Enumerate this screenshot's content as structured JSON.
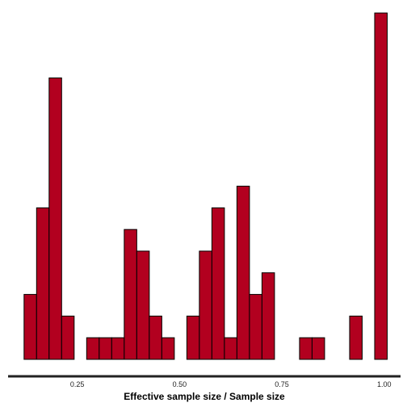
{
  "chart_data": {
    "type": "bar",
    "title": "",
    "xlabel": "Effective sample size / Sample size",
    "ylabel": "",
    "xlim": [
      0.077,
      1.04
    ],
    "ylim": [
      0,
      16.6
    ],
    "x_ticks": [
      {
        "value": 0.25,
        "label": "0.25"
      },
      {
        "value": 0.5,
        "label": "0.50"
      },
      {
        "value": 0.75,
        "label": "0.75"
      },
      {
        "value": 1.0,
        "label": "1.00"
      }
    ],
    "bin_width": 0.0306,
    "bins": [
      {
        "x_start": 0.12,
        "count": 3
      },
      {
        "x_start": 0.1506,
        "count": 7
      },
      {
        "x_start": 0.1812,
        "count": 13
      },
      {
        "x_start": 0.2118,
        "count": 2
      },
      {
        "x_start": 0.2424,
        "count": 0
      },
      {
        "x_start": 0.273,
        "count": 1
      },
      {
        "x_start": 0.3036,
        "count": 1
      },
      {
        "x_start": 0.3342,
        "count": 1
      },
      {
        "x_start": 0.3648,
        "count": 6
      },
      {
        "x_start": 0.3954,
        "count": 5
      },
      {
        "x_start": 0.426,
        "count": 2
      },
      {
        "x_start": 0.4566,
        "count": 1
      },
      {
        "x_start": 0.4872,
        "count": 0
      },
      {
        "x_start": 0.5178,
        "count": 2
      },
      {
        "x_start": 0.5484,
        "count": 5
      },
      {
        "x_start": 0.579,
        "count": 7
      },
      {
        "x_start": 0.6096,
        "count": 1
      },
      {
        "x_start": 0.6402,
        "count": 8
      },
      {
        "x_start": 0.6708,
        "count": 3
      },
      {
        "x_start": 0.7014,
        "count": 4
      },
      {
        "x_start": 0.732,
        "count": 0
      },
      {
        "x_start": 0.7626,
        "count": 0
      },
      {
        "x_start": 0.7932,
        "count": 1
      },
      {
        "x_start": 0.8238,
        "count": 1
      },
      {
        "x_start": 0.8544,
        "count": 0
      },
      {
        "x_start": 0.885,
        "count": 0
      },
      {
        "x_start": 0.9156,
        "count": 2
      },
      {
        "x_start": 0.9462,
        "count": 0
      },
      {
        "x_start": 0.9768,
        "count": 16
      }
    ],
    "bar_color": "#b2001f",
    "bar_outline": "#000000",
    "axis_line_color": "#222222",
    "grid": false
  }
}
